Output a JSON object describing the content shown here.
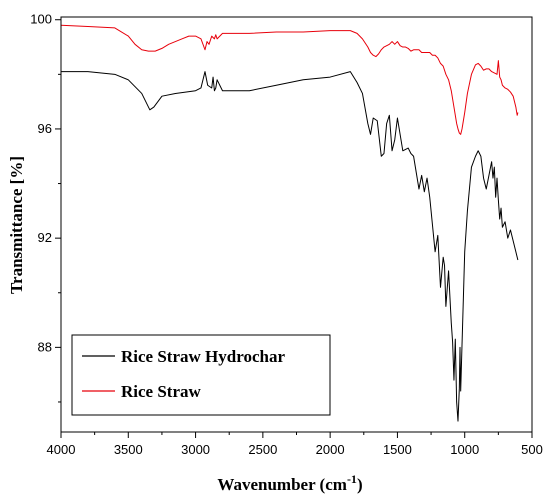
{
  "chart_data": {
    "type": "line",
    "xlabel": "Wavenumber (cm",
    "xlabel_superscript": "-1",
    "xlabel_suffix": ")",
    "ylabel": "Transmittance [%]",
    "xlim": [
      4000,
      500
    ],
    "ylim": [
      84.9,
      100.1
    ],
    "x_reversed": true,
    "grid": false,
    "legend_position": "bottom-left",
    "x_ticks": [
      4000,
      3500,
      3000,
      2500,
      2000,
      1500,
      1000,
      500
    ],
    "x_tick_labels": [
      "4000",
      "3500",
      "3000",
      "2500",
      "2000",
      "1500",
      "1000",
      "500"
    ],
    "y_ticks": [
      88,
      92,
      96,
      100
    ],
    "y_tick_labels": [
      "88",
      "92",
      "96",
      "100"
    ],
    "series": [
      {
        "name": "Rice Straw Hydrochar",
        "color": "#000000",
        "x": [
          4000,
          3800,
          3600,
          3500,
          3400,
          3340,
          3310,
          3250,
          3150,
          3000,
          2960,
          2930,
          2910,
          2880,
          2870,
          2860,
          2850,
          2840,
          2800,
          2600,
          2400,
          2200,
          2000,
          1850,
          1800,
          1760,
          1720,
          1700,
          1680,
          1650,
          1620,
          1600,
          1580,
          1560,
          1540,
          1520,
          1500,
          1480,
          1460,
          1420,
          1400,
          1380,
          1340,
          1320,
          1300,
          1280,
          1260,
          1220,
          1200,
          1180,
          1160,
          1150,
          1140,
          1120,
          1100,
          1090,
          1080,
          1070,
          1060,
          1050,
          1040,
          1035,
          1030,
          1020,
          1010,
          1000,
          980,
          950,
          920,
          900,
          880,
          860,
          840,
          820,
          800,
          790,
          780,
          770,
          760,
          750,
          740,
          730,
          720,
          700,
          680,
          660,
          640,
          620,
          605
        ],
        "y": [
          98.1,
          98.1,
          98.0,
          97.8,
          97.3,
          96.7,
          96.8,
          97.2,
          97.3,
          97.4,
          97.5,
          98.1,
          97.6,
          97.5,
          97.9,
          97.4,
          97.5,
          97.8,
          97.4,
          97.4,
          97.6,
          97.8,
          97.9,
          98.1,
          97.7,
          97.3,
          96.2,
          95.8,
          96.4,
          96.3,
          95.0,
          95.1,
          96.2,
          96.5,
          95.2,
          95.6,
          96.4,
          95.8,
          95.2,
          95.3,
          95.1,
          95.0,
          93.8,
          94.3,
          93.7,
          94.2,
          93.5,
          91.5,
          92.1,
          90.2,
          91.3,
          91.0,
          89.5,
          90.8,
          88.9,
          88.2,
          86.8,
          88.3,
          86.0,
          85.3,
          86.5,
          88.0,
          86.4,
          88.1,
          89.8,
          91.5,
          93.0,
          94.6,
          95.0,
          95.2,
          95.0,
          94.2,
          93.8,
          94.3,
          94.8,
          94.2,
          94.6,
          93.5,
          94.2,
          93.4,
          92.7,
          93.1,
          92.4,
          92.6,
          92.0,
          92.3,
          91.9,
          91.5,
          91.2
        ]
      },
      {
        "name": "Rice Straw",
        "color": "#e8000b",
        "x": [
          4000,
          3800,
          3600,
          3500,
          3450,
          3400,
          3350,
          3300,
          3250,
          3200,
          3150,
          3100,
          3050,
          3000,
          2960,
          2930,
          2915,
          2900,
          2880,
          2860,
          2850,
          2840,
          2800,
          2600,
          2400,
          2200,
          2000,
          1850,
          1800,
          1760,
          1720,
          1700,
          1680,
          1660,
          1640,
          1620,
          1600,
          1580,
          1560,
          1540,
          1520,
          1500,
          1480,
          1460,
          1440,
          1420,
          1400,
          1380,
          1340,
          1320,
          1300,
          1280,
          1260,
          1240,
          1220,
          1200,
          1180,
          1160,
          1140,
          1120,
          1100,
          1080,
          1060,
          1050,
          1040,
          1030,
          1020,
          1010,
          1000,
          980,
          950,
          920,
          900,
          880,
          860,
          840,
          820,
          800,
          780,
          760,
          750,
          740,
          730,
          720,
          700,
          680,
          660,
          640,
          620,
          610,
          605
        ],
        "y": [
          99.8,
          99.75,
          99.7,
          99.4,
          99.1,
          98.9,
          98.85,
          98.85,
          98.95,
          99.1,
          99.2,
          99.3,
          99.4,
          99.4,
          99.3,
          98.9,
          99.2,
          99.1,
          99.4,
          99.3,
          99.45,
          99.3,
          99.5,
          99.5,
          99.55,
          99.55,
          99.6,
          99.6,
          99.5,
          99.3,
          99.0,
          98.8,
          98.7,
          98.65,
          98.75,
          98.9,
          99.0,
          99.05,
          99.1,
          99.2,
          99.1,
          99.2,
          99.05,
          99.0,
          99.0,
          98.95,
          98.85,
          98.9,
          98.9,
          98.8,
          98.8,
          98.8,
          98.8,
          98.7,
          98.7,
          98.6,
          98.4,
          98.3,
          98.0,
          97.8,
          97.4,
          96.8,
          96.2,
          96.0,
          95.85,
          95.8,
          96.0,
          96.3,
          96.6,
          97.3,
          98.0,
          98.35,
          98.4,
          98.3,
          98.15,
          98.2,
          98.2,
          98.1,
          98.05,
          98.0,
          98.5,
          97.9,
          97.8,
          97.6,
          97.5,
          97.45,
          97.35,
          97.2,
          96.8,
          96.5,
          96.6
        ]
      }
    ],
    "legend": [
      {
        "label": "Rice Straw Hydrochar",
        "color": "#000000"
      },
      {
        "label": "Rice Straw",
        "color": "#e8000b"
      }
    ]
  }
}
